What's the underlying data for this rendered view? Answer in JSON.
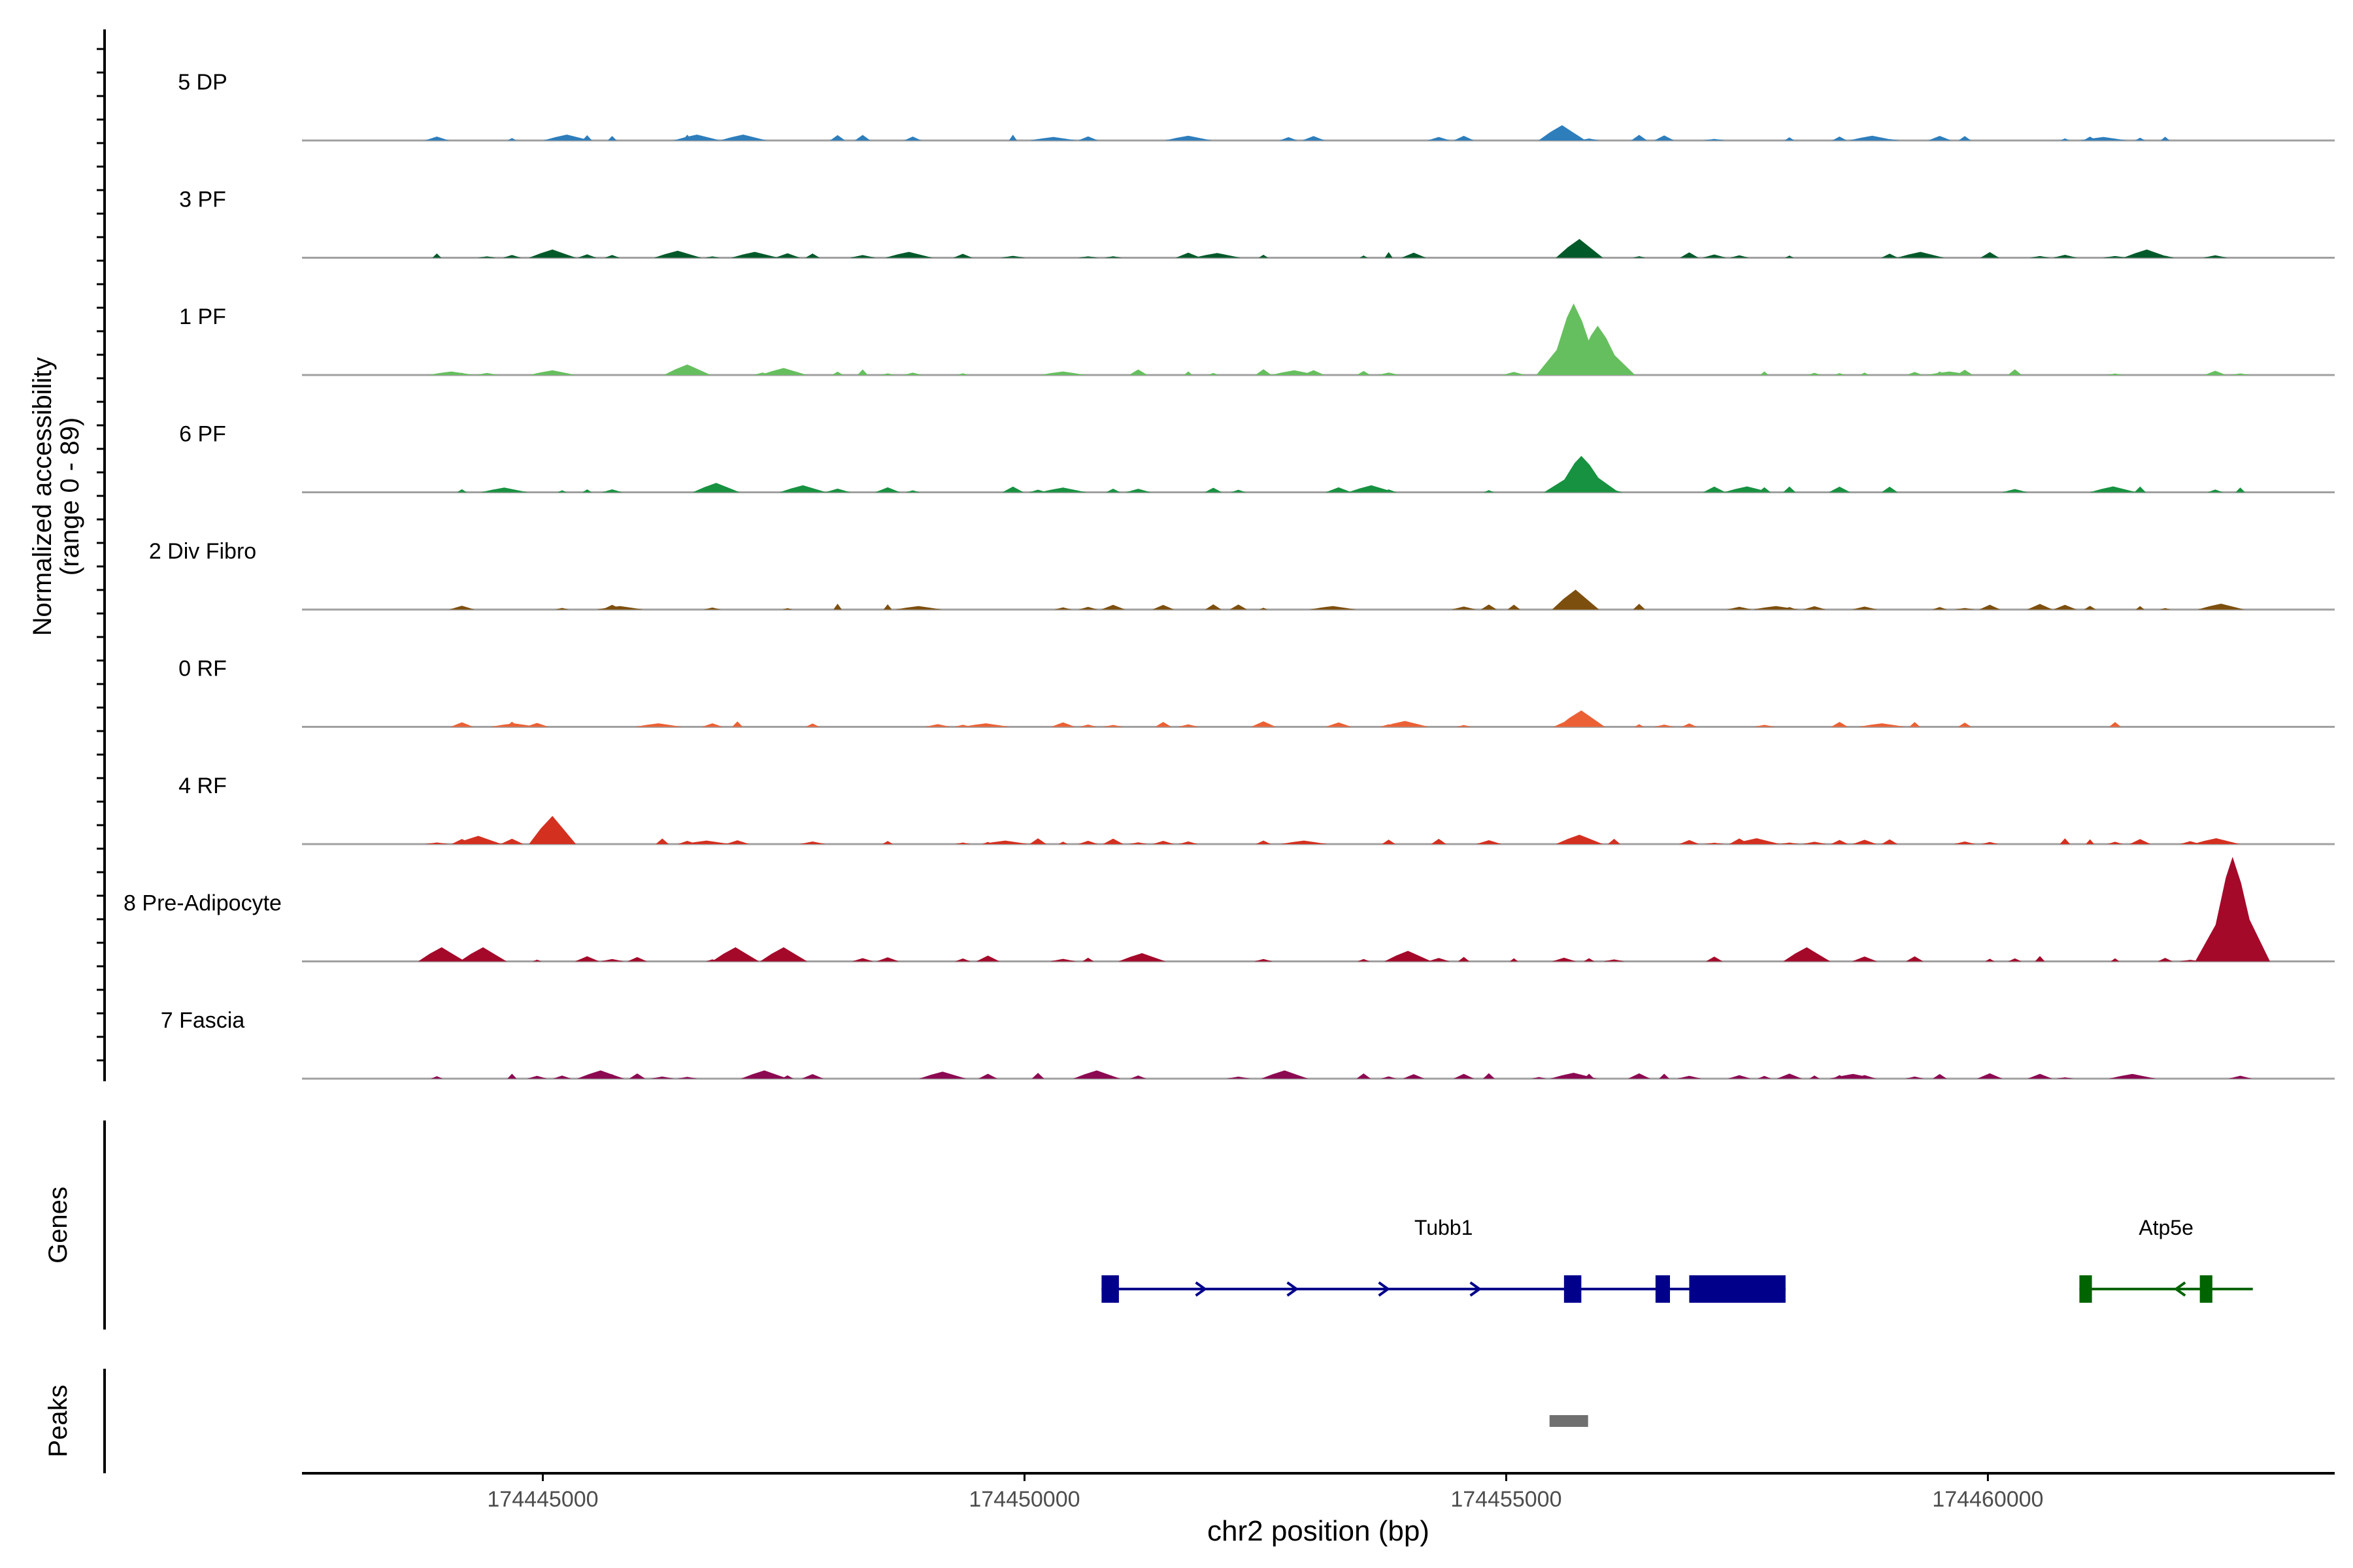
{
  "chart_data": {
    "type": "area",
    "region": {
      "chrom": "chr2",
      "start": 174442500,
      "end": 174463600
    },
    "coverage": {
      "ylabel": "Normalized accessibility",
      "ylabel_range": "(range 0 - 89)",
      "ylim": [
        0,
        89
      ],
      "tracks": [
        {
          "name": "5 DP",
          "color": "#2E7EBC",
          "peaks": [
            [
              174445250,
              5
            ],
            [
              174446600,
              5
            ],
            [
              174447080,
              5
            ],
            [
              174450300,
              3
            ],
            [
              174451700,
              4
            ],
            [
              174455580,
              13
            ],
            [
              174458800,
              4
            ],
            [
              174461200,
              3
            ]
          ]
        },
        {
          "name": "3 PF",
          "color": "#005A2A",
          "peaks": [
            [
              174445100,
              7
            ],
            [
              174446400,
              6
            ],
            [
              174447200,
              5
            ],
            [
              174448800,
              5
            ],
            [
              174452000,
              4
            ],
            [
              174455760,
              16
            ],
            [
              174459300,
              5
            ],
            [
              174461650,
              7
            ]
          ]
        },
        {
          "name": "1 PF",
          "color": "#66BF5E",
          "peaks": [
            [
              174444050,
              3
            ],
            [
              174445100,
              4
            ],
            [
              174446500,
              9
            ],
            [
              174447500,
              6
            ],
            [
              174450400,
              3
            ],
            [
              174452800,
              4
            ],
            [
              174455700,
              61
            ],
            [
              174455950,
              42
            ],
            [
              174459600,
              3
            ]
          ]
        },
        {
          "name": "6 PF",
          "color": "#179240",
          "peaks": [
            [
              174444600,
              4
            ],
            [
              174446800,
              8
            ],
            [
              174447700,
              6
            ],
            [
              174450400,
              4
            ],
            [
              174453600,
              6
            ],
            [
              174455780,
              31
            ],
            [
              174457500,
              5
            ],
            [
              174461300,
              5
            ]
          ]
        },
        {
          "name": "2 Div Fibro",
          "color": "#7D4F0E",
          "peaks": [
            [
              174445800,
              3
            ],
            [
              174448900,
              3
            ],
            [
              174453200,
              3
            ],
            [
              174455720,
              17
            ],
            [
              174457800,
              3
            ],
            [
              174462420,
              5
            ]
          ]
        },
        {
          "name": "0 RF",
          "color": "#EB6135",
          "peaks": [
            [
              174444700,
              3
            ],
            [
              174446200,
              3
            ],
            [
              174449600,
              3
            ],
            [
              174453950,
              5
            ],
            [
              174455780,
              14
            ],
            [
              174458900,
              3
            ]
          ]
        },
        {
          "name": "4 RF",
          "color": "#D43020",
          "peaks": [
            [
              174444330,
              7
            ],
            [
              174445100,
              24
            ],
            [
              174446700,
              3
            ],
            [
              174449800,
              3
            ],
            [
              174452900,
              3
            ],
            [
              174455760,
              8
            ],
            [
              174457600,
              5
            ],
            [
              174462370,
              5
            ]
          ]
        },
        {
          "name": "8 Pre-Adipocyte",
          "color": "#A5092A",
          "peaks": [
            [
              174443950,
              12
            ],
            [
              174444380,
              12
            ],
            [
              174447000,
              12
            ],
            [
              174447500,
              12
            ],
            [
              174451220,
              7
            ],
            [
              174453980,
              9
            ],
            [
              174458120,
              12
            ],
            [
              174462540,
              89
            ]
          ]
        },
        {
          "name": "7 Fascia",
          "color": "#8C0A52",
          "peaks": [
            [
              174445600,
              7
            ],
            [
              174447300,
              7
            ],
            [
              174449150,
              6
            ],
            [
              174450750,
              7
            ],
            [
              174452700,
              7
            ],
            [
              174455700,
              5
            ],
            [
              174458600,
              4
            ],
            [
              174461500,
              4
            ]
          ]
        }
      ]
    },
    "genes_label": "Genes",
    "genes": [
      {
        "name": "Tubb1",
        "strand": "+",
        "color": "#00008B",
        "start": 174450800,
        "end": 174457900,
        "exons": [
          [
            174450800,
            174450980
          ],
          [
            174455600,
            174455780
          ],
          [
            174456550,
            174456700
          ],
          [
            174456900,
            174457900
          ]
        ]
      },
      {
        "name": "Atp5e",
        "color": "#006400",
        "strand": "-",
        "start": 174460950,
        "end": 174462750,
        "exons": [
          [
            174460950,
            174461080
          ],
          [
            174462200,
            174462330
          ]
        ]
      }
    ],
    "peaks_label": "Peaks",
    "peak_regions": [
      [
        174455450,
        174455850
      ]
    ],
    "xlabel": "chr2 position (bp)",
    "xticks": [
      "174445000",
      "174450000",
      "174455000",
      "174460000"
    ]
  }
}
